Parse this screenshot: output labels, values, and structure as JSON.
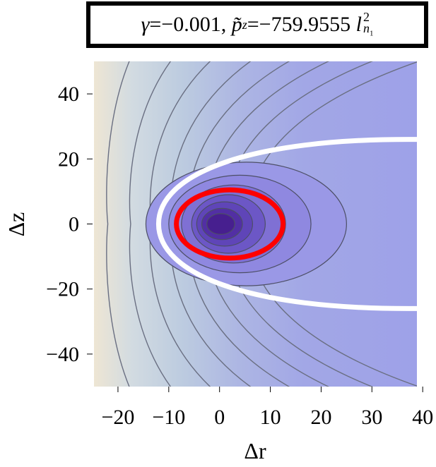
{
  "title": {
    "gamma_symbol": "γ",
    "gamma_value": "=−0.001,",
    "p_symbol": "p̃",
    "p_subscript": "z",
    "p_value": "=−759.9555",
    "l_symbol": "l",
    "l_superscript": "2",
    "l_subscript_n": "n",
    "l_subscript_1": "1"
  },
  "chart_data": {
    "type": "contour",
    "xlabel": "Δr",
    "ylabel": "Δz",
    "xlim": [
      -25,
      39
    ],
    "ylim": [
      -50,
      50
    ],
    "x_ticks": [
      {
        "value": -20,
        "label": "−20"
      },
      {
        "value": -10,
        "label": "−10"
      },
      {
        "value": 0,
        "label": "0"
      },
      {
        "value": 10,
        "label": "10"
      },
      {
        "value": 20,
        "label": "20"
      },
      {
        "value": 30,
        "label": "30"
      },
      {
        "value": 40,
        "label": "40"
      }
    ],
    "y_ticks": [
      {
        "value": 40,
        "label": "40"
      },
      {
        "value": 20,
        "label": "20"
      },
      {
        "value": 0,
        "label": "0"
      },
      {
        "value": -20,
        "label": "−20"
      },
      {
        "value": -40,
        "label": "−40"
      }
    ],
    "minimum_center": [
      0,
      0
    ],
    "red_contour": {
      "center": [
        2,
        0
      ],
      "rx": 10.5,
      "rz": 10.5,
      "color": "#ff0000"
    },
    "white_boundary": {
      "vertex_x": -12,
      "half_width_at_x39": 26,
      "color": "#ffffff"
    },
    "colors": {
      "far_left": "#efe6d3",
      "mid": "#b9c6df",
      "right": "#a0a2e8",
      "core": "#4a1d8f"
    },
    "grid": false
  }
}
